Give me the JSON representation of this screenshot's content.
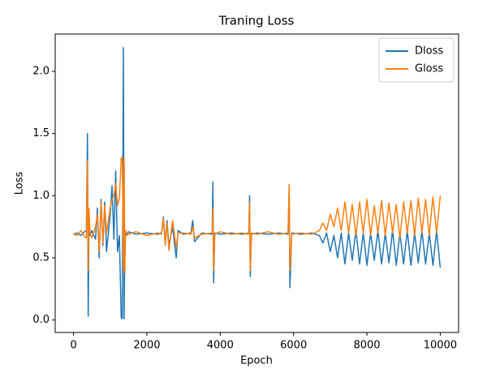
{
  "chart_data": {
    "type": "line",
    "title": "Traning Loss",
    "x_label": "Epoch",
    "y_label": "Loss",
    "x": [
      0,
      100,
      200,
      300,
      350,
      380,
      400,
      420,
      450,
      500,
      600,
      650,
      700,
      750,
      800,
      850,
      900,
      1000,
      1050,
      1100,
      1150,
      1200,
      1250,
      1300,
      1330,
      1360,
      1380,
      1400,
      1420,
      1450,
      1500,
      1700,
      2000,
      2300,
      2400,
      2450,
      2500,
      2550,
      2600,
      2700,
      2800,
      2850,
      3000,
      3200,
      3250,
      3300,
      3500,
      3780,
      3800,
      3820,
      3850,
      4000,
      4300,
      4600,
      4780,
      4800,
      4820,
      4850,
      5000,
      5300,
      5600,
      5850,
      5880,
      5900,
      5950,
      6200,
      6500,
      6700,
      6800,
      6900,
      7000,
      7100,
      7200,
      7300,
      7400,
      7500,
      7600,
      7700,
      7800,
      7900,
      8000,
      8100,
      8200,
      8300,
      8400,
      8500,
      8600,
      8700,
      8800,
      8900,
      9000,
      9100,
      9200,
      9300,
      9400,
      9500,
      9600,
      9700,
      9800,
      9900,
      10000
    ],
    "series": [
      {
        "name": "Dloss",
        "color": "#1f77b4",
        "values": [
          0.69,
          0.7,
          0.68,
          0.71,
          0.72,
          1.5,
          0.03,
          0.75,
          0.68,
          0.72,
          0.65,
          0.9,
          0.5,
          0.97,
          0.6,
          0.95,
          0.55,
          0.85,
          1.08,
          0.65,
          1.2,
          0.55,
          0.68,
          0.02,
          0.01,
          2.19,
          0.01,
          0.7,
          0.72,
          0.68,
          0.71,
          0.69,
          0.7,
          0.69,
          0.7,
          0.83,
          0.62,
          0.8,
          0.6,
          0.75,
          0.5,
          0.72,
          0.69,
          0.7,
          0.8,
          0.63,
          0.7,
          0.69,
          1.11,
          0.3,
          0.7,
          0.69,
          0.7,
          0.69,
          0.7,
          1.0,
          0.35,
          0.69,
          0.7,
          0.69,
          0.7,
          0.69,
          1.05,
          0.26,
          0.7,
          0.69,
          0.7,
          0.68,
          0.62,
          0.7,
          0.55,
          0.68,
          0.5,
          0.7,
          0.45,
          0.7,
          0.48,
          0.72,
          0.45,
          0.7,
          0.44,
          0.7,
          0.48,
          0.72,
          0.45,
          0.7,
          0.46,
          0.72,
          0.44,
          0.7,
          0.45,
          0.72,
          0.44,
          0.7,
          0.46,
          0.72,
          0.45,
          0.7,
          0.44,
          0.72,
          0.42
        ]
      },
      {
        "name": "Gloss",
        "color": "#ff7f0e",
        "values": [
          0.69,
          0.68,
          0.72,
          0.67,
          0.66,
          1.28,
          0.4,
          0.9,
          0.7,
          0.66,
          0.75,
          0.85,
          0.55,
          0.95,
          0.62,
          0.92,
          0.7,
          0.9,
          0.97,
          1.0,
          1.1,
          0.92,
          0.98,
          1.3,
          1.31,
          0.4,
          1.3,
          0.38,
          0.72,
          0.7,
          0.69,
          0.71,
          0.68,
          0.7,
          0.69,
          0.82,
          0.6,
          0.78,
          0.56,
          0.8,
          0.58,
          0.7,
          0.7,
          0.69,
          0.75,
          0.66,
          0.69,
          0.7,
          0.9,
          0.4,
          0.69,
          0.71,
          0.69,
          0.7,
          0.69,
          0.95,
          0.4,
          0.7,
          0.69,
          0.71,
          0.69,
          0.7,
          1.09,
          0.4,
          0.69,
          0.7,
          0.69,
          0.72,
          0.78,
          0.72,
          0.85,
          0.75,
          0.9,
          0.72,
          0.95,
          0.7,
          0.93,
          0.68,
          0.95,
          0.7,
          0.97,
          0.68,
          0.92,
          0.7,
          0.96,
          0.68,
          0.94,
          0.7,
          0.93,
          0.66,
          0.95,
          0.7,
          0.96,
          0.68,
          0.98,
          0.7,
          0.97,
          0.68,
          0.99,
          0.7,
          1.0
        ]
      }
    ],
    "xlim": [
      -500,
      10500
    ],
    "ylim": [
      -0.1,
      2.3
    ],
    "xticks": [
      0,
      2000,
      4000,
      6000,
      8000,
      10000
    ],
    "yticks": [
      {
        "value": 0,
        "label": "0.0"
      },
      {
        "value": 0.5,
        "label": "0.5"
      },
      {
        "value": 1,
        "label": "1.0"
      },
      {
        "value": 1.5,
        "label": "1.5"
      },
      {
        "value": 2,
        "label": "2.0"
      }
    ],
    "legend": "upper right",
    "grid": false
  }
}
